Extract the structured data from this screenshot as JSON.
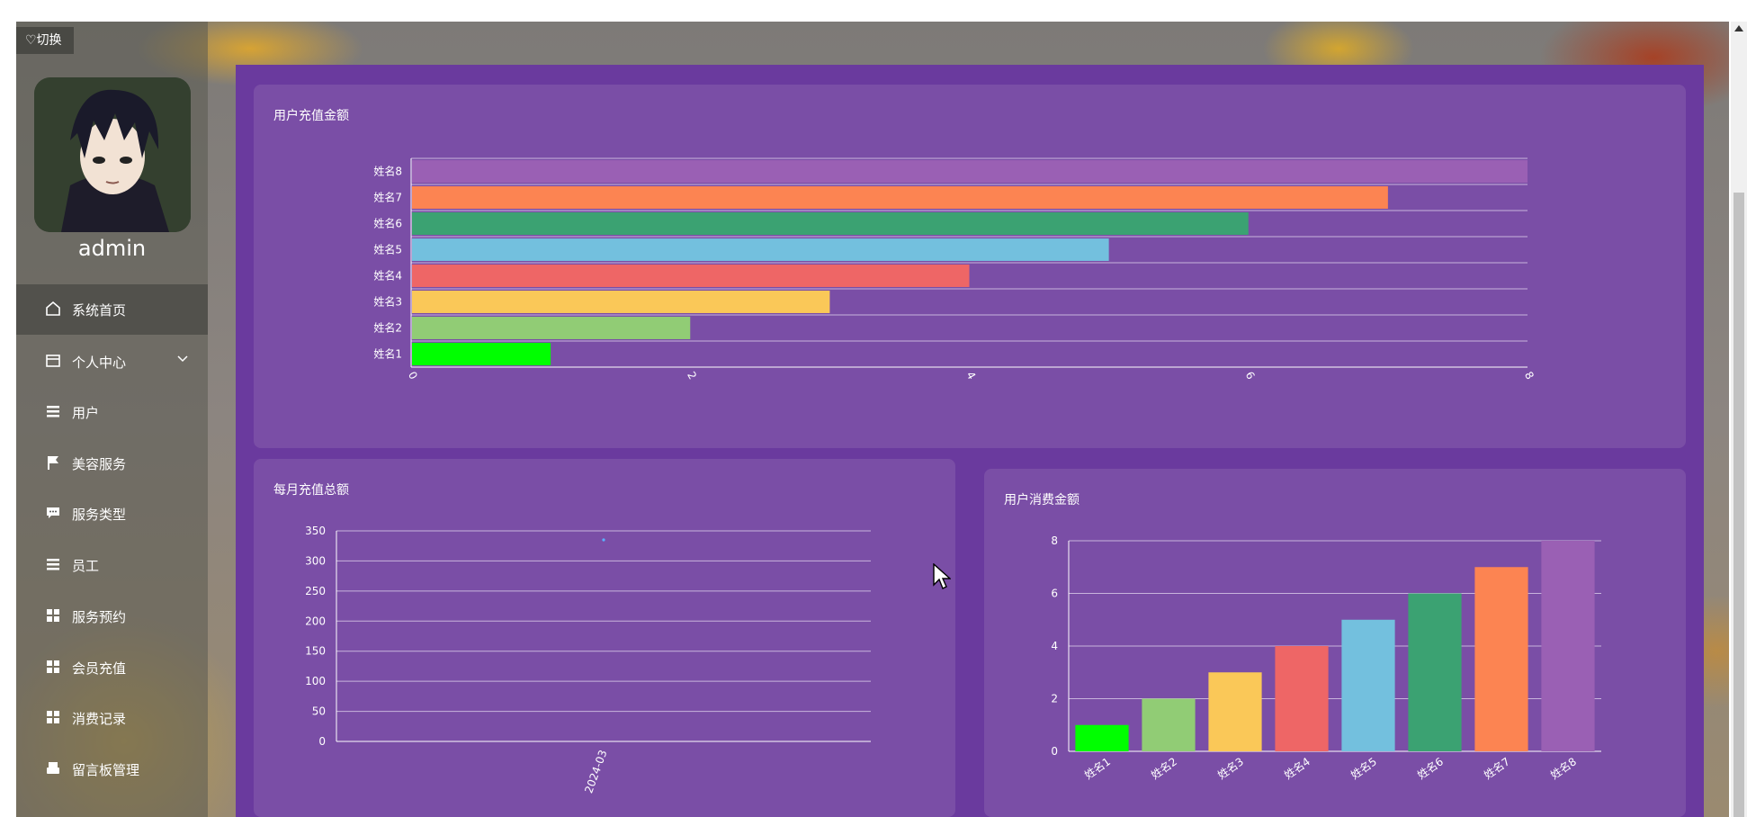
{
  "app": {
    "switch_label": "♡切换",
    "username": "admin"
  },
  "sidebar": {
    "items": [
      {
        "label": "系统首页",
        "icon": "home-icon",
        "active": true
      },
      {
        "label": "个人中心",
        "icon": "card-icon",
        "expandable": true
      },
      {
        "label": "用户",
        "icon": "list-icon"
      },
      {
        "label": "美容服务",
        "icon": "flag-icon"
      },
      {
        "label": "服务类型",
        "icon": "chat-icon"
      },
      {
        "label": "员工",
        "icon": "list-icon"
      },
      {
        "label": "服务预约",
        "icon": "grid-icon"
      },
      {
        "label": "会员充值",
        "icon": "grid-icon"
      },
      {
        "label": "消费记录",
        "icon": "grid-icon"
      },
      {
        "label": "留言板管理",
        "icon": "print-icon"
      }
    ]
  },
  "cards": {
    "recharge_title": "用户充值金额",
    "monthly_title": "每月充值总额",
    "consume_title": "用户消费金额"
  },
  "colors": {
    "palette": [
      "#00ff00",
      "#91cc75",
      "#fac858",
      "#ee6666",
      "#73c0de",
      "#3ba272",
      "#fc8452",
      "#9a60b4"
    ],
    "panel": "#7a4ea6",
    "background": "#6a3a9e"
  },
  "chart_data": [
    {
      "type": "bar",
      "orientation": "horizontal",
      "title": "用户充值金额",
      "categories": [
        "姓名1",
        "姓名2",
        "姓名3",
        "姓名4",
        "姓名5",
        "姓名6",
        "姓名7",
        "姓名8"
      ],
      "values": [
        1,
        2,
        3,
        4,
        5,
        6,
        7,
        8
      ],
      "xlim": [
        0,
        8
      ],
      "xticks": [
        "0",
        "2",
        "4",
        "6",
        "8"
      ]
    },
    {
      "type": "line",
      "title": "每月充值总额",
      "categories": [
        "2024-03"
      ],
      "values": [
        335
      ],
      "ylim": [
        0,
        350
      ],
      "yticks": [
        "0",
        "50",
        "100",
        "150",
        "200",
        "250",
        "300",
        "350"
      ]
    },
    {
      "type": "bar",
      "title": "用户消费金额",
      "categories": [
        "姓名1",
        "姓名2",
        "姓名3",
        "姓名4",
        "姓名5",
        "姓名6",
        "姓名7",
        "姓名8"
      ],
      "values": [
        1,
        2,
        3,
        4,
        5,
        6,
        7,
        8
      ],
      "ylim": [
        0,
        8
      ],
      "yticks": [
        "0",
        "2",
        "4",
        "6",
        "8"
      ]
    }
  ]
}
